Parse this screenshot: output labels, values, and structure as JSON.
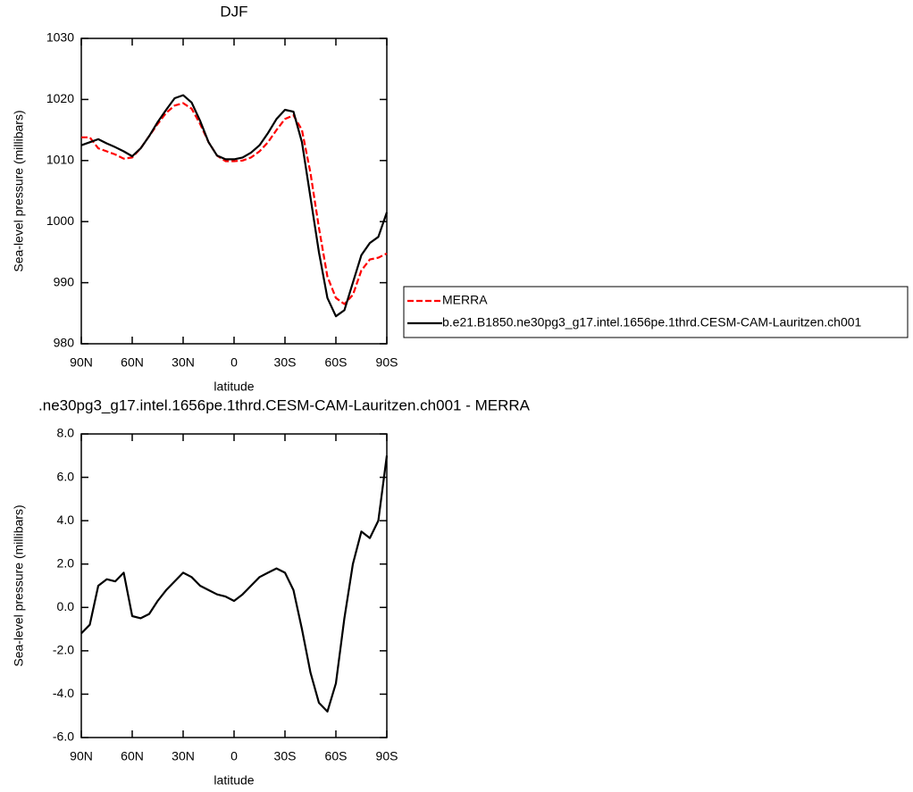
{
  "chart_data": [
    {
      "type": "line",
      "title": "DJF",
      "xlabel": "latitude",
      "ylabel": "Sea-level pressure (millibars)",
      "x": [
        90,
        85,
        80,
        75,
        70,
        65,
        60,
        55,
        50,
        45,
        40,
        35,
        30,
        25,
        20,
        15,
        10,
        5,
        0,
        -5,
        -10,
        -15,
        -20,
        -25,
        -30,
        -35,
        -40,
        -45,
        -50,
        -55,
        -60,
        -65,
        -70,
        -75,
        -80,
        -85,
        -90
      ],
      "xlim": [
        90,
        -90
      ],
      "xticks": [
        {
          "value": 90,
          "label": "90N"
        },
        {
          "value": 60,
          "label": "60N"
        },
        {
          "value": 30,
          "label": "30N"
        },
        0,
        {
          "value": -30,
          "label": "30S"
        },
        {
          "value": -60,
          "label": "60S"
        },
        {
          "value": -90,
          "label": "90S"
        }
      ],
      "ylim": [
        980,
        1030
      ],
      "yticks": [
        980,
        990,
        1000,
        1010,
        1020,
        1030
      ],
      "series": [
        {
          "name": "MERRA",
          "color": "#ff0000",
          "dash": true,
          "values": [
            1013.8,
            1013.8,
            1012.0,
            1011.5,
            1011.0,
            1010.3,
            1010.5,
            1012,
            1014,
            1016,
            1017.8,
            1019,
            1019.4,
            1018.5,
            1016,
            1013,
            1010.8,
            1009.9,
            1009.9,
            1010,
            1010.5,
            1011.5,
            1013,
            1015,
            1016.8,
            1017.4,
            1015,
            1008,
            999,
            991,
            987.5,
            986.5,
            988,
            992,
            993.8,
            994.1,
            994.8
          ]
        },
        {
          "name": "b.e21.B1850.ne30pg3_g17.intel.1656pe.1thrd.CESM-CAM-Lauritzen.ch001",
          "color": "#000000",
          "dash": false,
          "values": [
            1012.5,
            1013.0,
            1013.5,
            1012.8,
            1012.2,
            1011.5,
            1010.7,
            1012,
            1014,
            1016.3,
            1018.3,
            1020.2,
            1020.7,
            1019.5,
            1016.5,
            1013,
            1010.8,
            1010.2,
            1010.2,
            1010.5,
            1011.3,
            1012.5,
            1014.5,
            1016.8,
            1018.3,
            1018,
            1013,
            1004,
            995,
            987.5,
            984.5,
            985.5,
            990,
            994.5,
            996.5,
            997.5,
            1001.5
          ]
        }
      ]
    },
    {
      "type": "line",
      "title": ".ne30pg3_g17.intel.1656pe.1thrd.CESM-CAM-Lauritzen.ch001 - MERRA",
      "xlabel": "latitude",
      "ylabel": "Sea-level pressure (millibars)",
      "x": [
        90,
        85,
        80,
        75,
        70,
        65,
        60,
        55,
        50,
        45,
        40,
        35,
        30,
        25,
        20,
        15,
        10,
        5,
        0,
        -5,
        -10,
        -15,
        -20,
        -25,
        -30,
        -35,
        -40,
        -45,
        -50,
        -55,
        -60,
        -65,
        -70,
        -75,
        -80,
        -85,
        -90
      ],
      "xlim": [
        90,
        -90
      ],
      "xticks": [
        {
          "value": 90,
          "label": "90N"
        },
        {
          "value": 60,
          "label": "60N"
        },
        {
          "value": 30,
          "label": "30N"
        },
        0,
        {
          "value": -30,
          "label": "30S"
        },
        {
          "value": -60,
          "label": "60S"
        },
        {
          "value": -90,
          "label": "90S"
        }
      ],
      "ylim": [
        -6,
        8
      ],
      "yticks": [
        {
          "value": -6,
          "label": "-6.0"
        },
        {
          "value": -4,
          "label": "-4.0"
        },
        {
          "value": -2,
          "label": "-2.0"
        },
        {
          "value": 0,
          "label": "0.0"
        },
        {
          "value": 2,
          "label": "2.0"
        },
        {
          "value": 4,
          "label": "4.0"
        },
        {
          "value": 6,
          "label": "6.0"
        },
        {
          "value": 8,
          "label": "8.0"
        }
      ],
      "series": [
        {
          "color": "#000000",
          "dash": false,
          "values": [
            -1.2,
            -0.8,
            1.0,
            1.3,
            1.2,
            1.6,
            -0.4,
            -0.5,
            -0.3,
            0.3,
            0.8,
            1.2,
            1.6,
            1.4,
            1.0,
            0.8,
            0.6,
            0.5,
            0.3,
            0.6,
            1.0,
            1.4,
            1.6,
            1.8,
            1.6,
            0.8,
            -1.0,
            -3.0,
            -4.4,
            -4.8,
            -3.5,
            -0.5,
            2.0,
            3.5,
            3.2,
            4.0,
            7.0
          ]
        }
      ]
    }
  ]
}
